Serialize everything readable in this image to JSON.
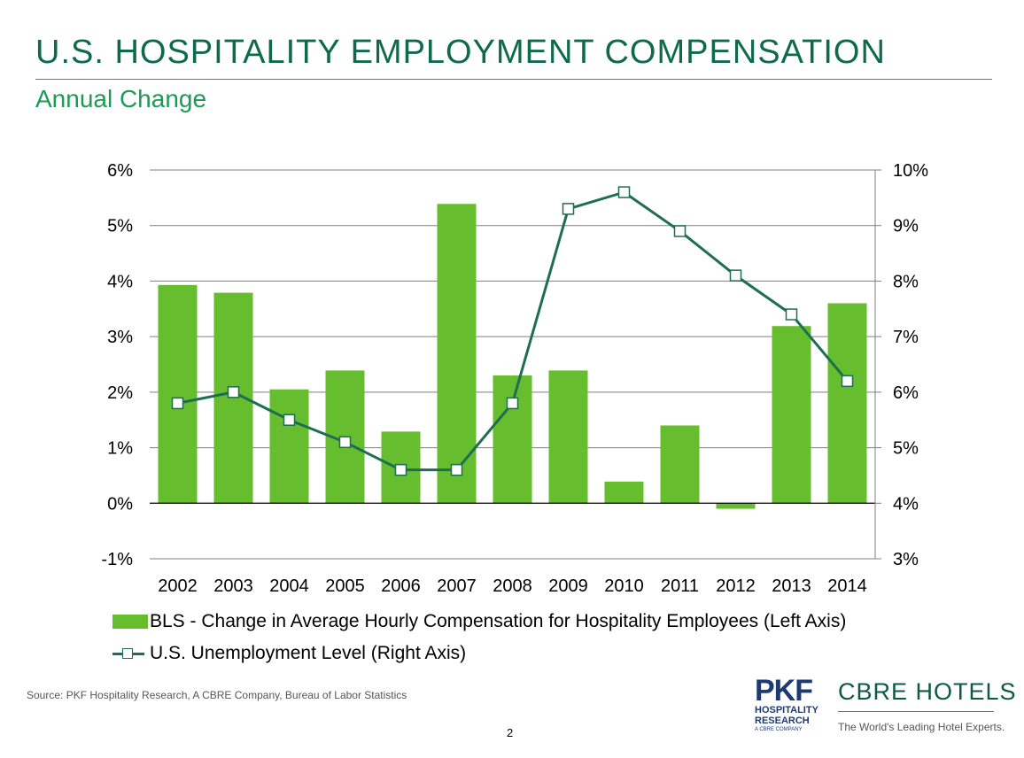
{
  "slide": {
    "title": "U.S. HOSPITALITY EMPLOYMENT COMPENSATION",
    "subtitle": "Annual Change",
    "source": "Source: PKF Hospitality Research, A CBRE Company, Bureau of Labor Statistics",
    "page_number": "2"
  },
  "logos": {
    "pkf": {
      "name": "PKF",
      "line1": "HOSPITALITY",
      "line2": "RESEARCH",
      "line3": "A CBRE COMPANY"
    },
    "cbre": {
      "name": "CBRE HOTELS",
      "tagline": "The World's Leading Hotel Experts."
    }
  },
  "colors": {
    "title": "#0f6a4b",
    "subtitle": "#1f9a55",
    "bar": "#66bd2d",
    "line": "#1e6e52",
    "gridline": "#7f7f7f"
  },
  "chart_data": {
    "type": "bar",
    "categories": [
      "2002",
      "2003",
      "2004",
      "2005",
      "2006",
      "2007",
      "2008",
      "2009",
      "2010",
      "2011",
      "2012",
      "2013",
      "2014"
    ],
    "series": [
      {
        "name": "BLS - Change in Average Hourly Compensation for Hospitality Employees (Left Axis)",
        "type": "bar",
        "axis": "left",
        "values": [
          3.93,
          3.79,
          2.05,
          2.39,
          1.29,
          5.39,
          2.3,
          2.39,
          0.39,
          1.4,
          -0.1,
          3.19,
          3.6
        ]
      },
      {
        "name": "U.S. Unemployment Level (Right Axis)",
        "type": "line",
        "axis": "right",
        "values": [
          5.8,
          6.0,
          5.5,
          5.1,
          4.6,
          4.6,
          5.8,
          9.3,
          9.6,
          8.9,
          8.1,
          7.4,
          6.2
        ]
      }
    ],
    "y_left": {
      "min": -1,
      "max": 6,
      "step": 1,
      "tick_labels": [
        "-1%",
        "0%",
        "1%",
        "2%",
        "3%",
        "4%",
        "5%",
        "6%"
      ]
    },
    "y_right": {
      "min": 3,
      "max": 10,
      "step": 1,
      "tick_labels": [
        "3%",
        "4%",
        "5%",
        "6%",
        "7%",
        "8%",
        "9%",
        "10%"
      ]
    },
    "grid": true,
    "legend_position": "bottom"
  }
}
